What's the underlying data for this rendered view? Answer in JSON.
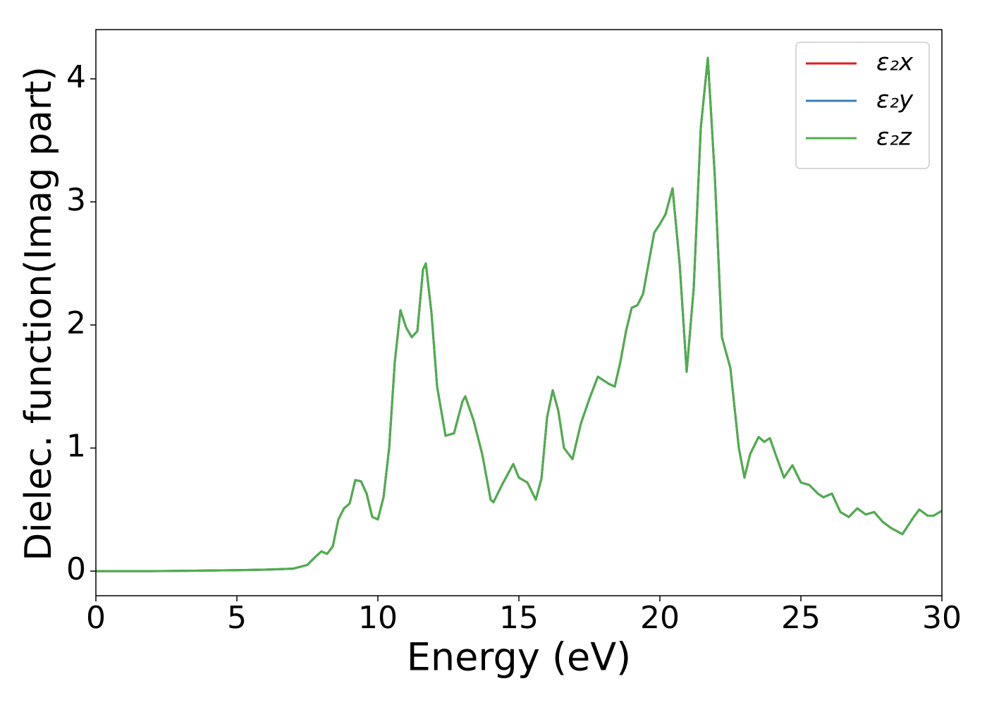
{
  "chart_data": {
    "type": "line",
    "xlabel": "Energy (eV)",
    "ylabel": "Dielec. function(Imag part)",
    "x": [
      0,
      1,
      2,
      3,
      4,
      5,
      6,
      7,
      7.5,
      7.8,
      8,
      8.2,
      8.4,
      8.6,
      8.8,
      9,
      9.2,
      9.4,
      9.6,
      9.8,
      10,
      10.2,
      10.4,
      10.6,
      10.8,
      11,
      11.2,
      11.4,
      11.6,
      11.7,
      11.9,
      12.1,
      12.4,
      12.7,
      13,
      13.1,
      13.4,
      13.7,
      14,
      14.1,
      14.4,
      14.8,
      15,
      15.3,
      15.6,
      15.8,
      16,
      16.2,
      16.4,
      16.6,
      16.9,
      17.2,
      17.5,
      17.8,
      18,
      18.2,
      18.4,
      18.6,
      18.8,
      19,
      19.2,
      19.4,
      19.6,
      19.8,
      20,
      20.2,
      20.45,
      20.7,
      20.95,
      21.2,
      21.45,
      21.7,
      21.95,
      22.2,
      22.5,
      22.8,
      23,
      23.2,
      23.5,
      23.7,
      23.9,
      24.1,
      24.4,
      24.7,
      25,
      25.3,
      25.6,
      25.8,
      26.1,
      26.4,
      26.7,
      27,
      27.3,
      27.6,
      27.9,
      28.2,
      28.6,
      29,
      29.2,
      29.5,
      29.7,
      30
    ],
    "series": [
      {
        "name": "ε₂x",
        "color": "#e41a1c",
        "values": [
          0,
          0,
          0,
          0.002,
          0.005,
          0.008,
          0.012,
          0.02,
          0.05,
          0.12,
          0.16,
          0.14,
          0.2,
          0.42,
          0.51,
          0.55,
          0.74,
          0.73,
          0.63,
          0.44,
          0.42,
          0.6,
          1.0,
          1.7,
          2.12,
          1.98,
          1.9,
          1.95,
          2.45,
          2.5,
          2.1,
          1.5,
          1.1,
          1.12,
          1.38,
          1.42,
          1.22,
          0.95,
          0.58,
          0.56,
          0.7,
          0.87,
          0.76,
          0.72,
          0.58,
          0.75,
          1.25,
          1.47,
          1.3,
          1.0,
          0.91,
          1.2,
          1.4,
          1.58,
          1.55,
          1.52,
          1.5,
          1.7,
          1.95,
          2.14,
          2.16,
          2.25,
          2.5,
          2.75,
          2.82,
          2.9,
          3.11,
          2.5,
          1.62,
          2.3,
          3.6,
          4.17,
          3.2,
          1.9,
          1.65,
          1.0,
          0.76,
          0.95,
          1.09,
          1.05,
          1.08,
          0.95,
          0.76,
          0.86,
          0.72,
          0.7,
          0.63,
          0.6,
          0.63,
          0.48,
          0.44,
          0.51,
          0.46,
          0.48,
          0.4,
          0.35,
          0.3,
          0.44,
          0.5,
          0.45,
          0.45,
          0.49
        ]
      },
      {
        "name": "ε₂y",
        "color": "#377eb8",
        "values": [
          0,
          0,
          0,
          0.002,
          0.005,
          0.008,
          0.012,
          0.02,
          0.05,
          0.12,
          0.16,
          0.14,
          0.2,
          0.42,
          0.51,
          0.55,
          0.74,
          0.73,
          0.63,
          0.44,
          0.42,
          0.6,
          1.0,
          1.7,
          2.12,
          1.98,
          1.9,
          1.95,
          2.45,
          2.5,
          2.1,
          1.5,
          1.1,
          1.12,
          1.38,
          1.42,
          1.22,
          0.95,
          0.58,
          0.56,
          0.7,
          0.87,
          0.76,
          0.72,
          0.58,
          0.75,
          1.25,
          1.47,
          1.3,
          1.0,
          0.91,
          1.2,
          1.4,
          1.58,
          1.55,
          1.52,
          1.5,
          1.7,
          1.95,
          2.14,
          2.16,
          2.25,
          2.5,
          2.75,
          2.82,
          2.9,
          3.11,
          2.5,
          1.62,
          2.3,
          3.6,
          4.17,
          3.2,
          1.9,
          1.65,
          1.0,
          0.76,
          0.95,
          1.09,
          1.05,
          1.08,
          0.95,
          0.76,
          0.86,
          0.72,
          0.7,
          0.63,
          0.6,
          0.63,
          0.48,
          0.44,
          0.51,
          0.46,
          0.48,
          0.4,
          0.35,
          0.3,
          0.44,
          0.5,
          0.45,
          0.45,
          0.49
        ]
      },
      {
        "name": "ε₂z",
        "color": "#4daf4a",
        "values": [
          0,
          0,
          0,
          0.002,
          0.005,
          0.008,
          0.012,
          0.02,
          0.05,
          0.12,
          0.16,
          0.14,
          0.2,
          0.42,
          0.51,
          0.55,
          0.74,
          0.73,
          0.63,
          0.44,
          0.42,
          0.6,
          1.0,
          1.7,
          2.12,
          1.98,
          1.9,
          1.95,
          2.45,
          2.5,
          2.1,
          1.5,
          1.1,
          1.12,
          1.38,
          1.42,
          1.22,
          0.95,
          0.58,
          0.56,
          0.7,
          0.87,
          0.76,
          0.72,
          0.58,
          0.75,
          1.25,
          1.47,
          1.3,
          1.0,
          0.91,
          1.2,
          1.4,
          1.58,
          1.55,
          1.52,
          1.5,
          1.7,
          1.95,
          2.14,
          2.16,
          2.25,
          2.5,
          2.75,
          2.82,
          2.9,
          3.11,
          2.5,
          1.62,
          2.3,
          3.6,
          4.17,
          3.2,
          1.9,
          1.65,
          1.0,
          0.76,
          0.95,
          1.09,
          1.05,
          1.08,
          0.95,
          0.76,
          0.86,
          0.72,
          0.7,
          0.63,
          0.6,
          0.63,
          0.48,
          0.44,
          0.51,
          0.46,
          0.48,
          0.4,
          0.35,
          0.3,
          0.44,
          0.5,
          0.45,
          0.45,
          0.49
        ]
      }
    ],
    "xlim": [
      0,
      30
    ],
    "xticks": [
      0,
      5,
      10,
      15,
      20,
      25,
      30
    ],
    "ylim": [
      -0.2,
      4.4
    ],
    "yticks": [
      0,
      1,
      2,
      3,
      4
    ],
    "grid": false,
    "legend": "upper right"
  }
}
